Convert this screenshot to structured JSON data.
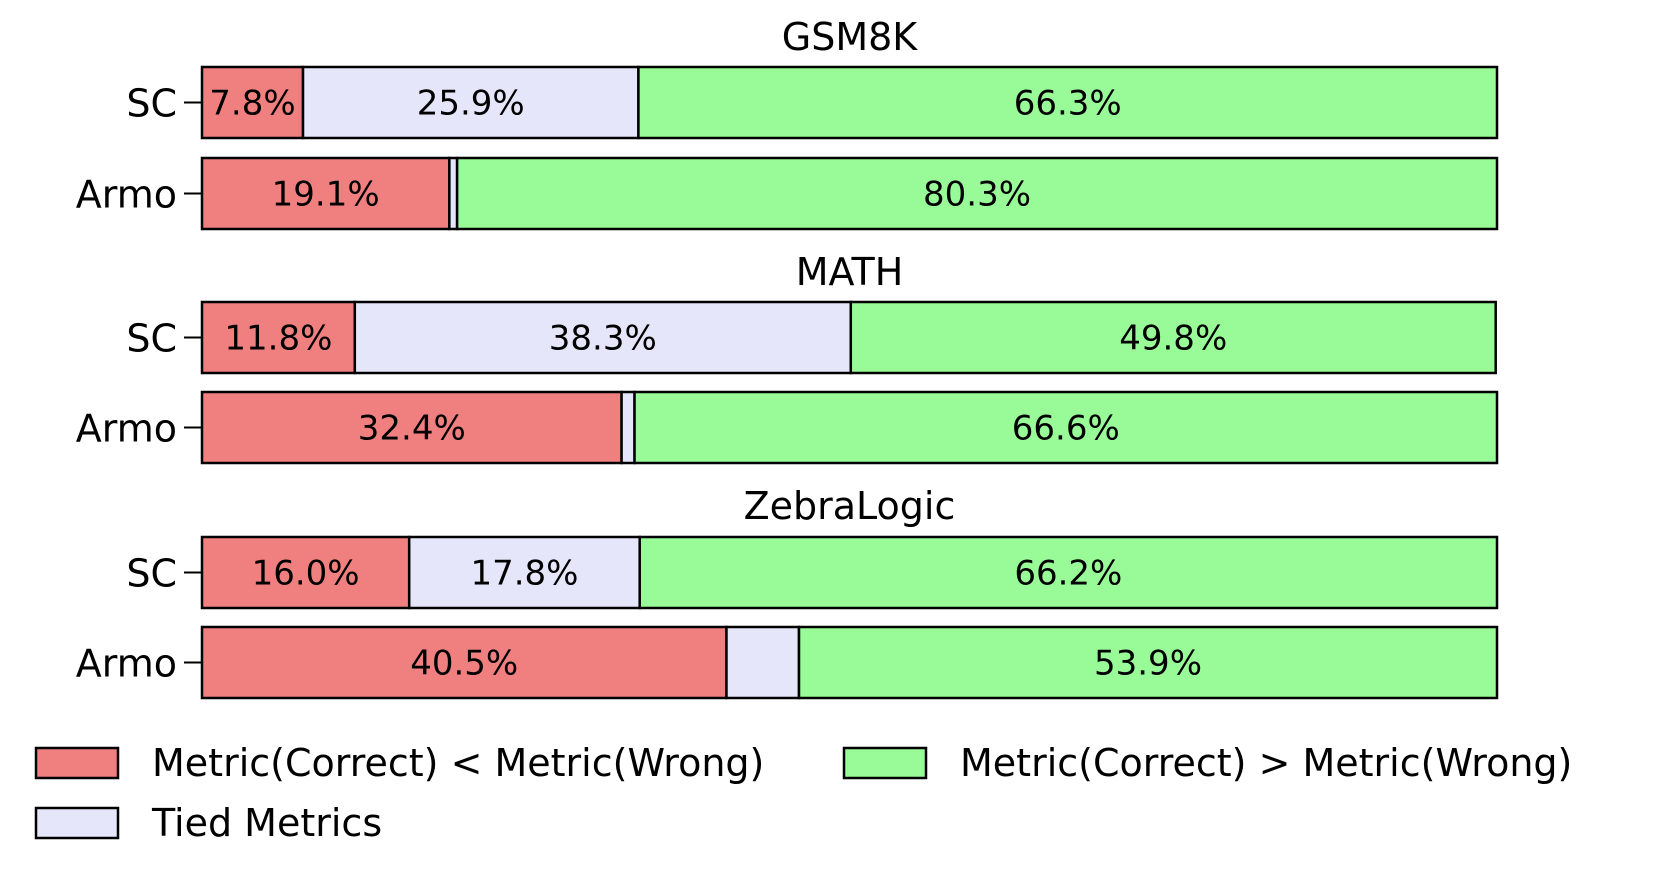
{
  "colors": {
    "lower": "#f08080",
    "tied": "#e6e6fa",
    "higher": "#98fb98",
    "edge": "#000000"
  },
  "chart_data": {
    "type": "bar",
    "orientation": "horizontal",
    "stacked": true,
    "xlim": [
      0,
      100
    ],
    "grid": false,
    "legend_position": "bottom",
    "legend": [
      {
        "key": "lower",
        "label": "Metric(Correct) < Metric(Wrong)"
      },
      {
        "key": "higher",
        "label": "Metric(Correct) > Metric(Wrong)"
      },
      {
        "key": "tied",
        "label": "Tied Metrics"
      }
    ],
    "panels": [
      {
        "title": "GSM8K",
        "rows": [
          {
            "label": "SC",
            "lower": 7.8,
            "tied": 25.9,
            "higher": 66.3,
            "lower_text": "7.8%",
            "tied_text": "25.9%",
            "higher_text": "66.3%"
          },
          {
            "label": "Armo",
            "lower": 19.1,
            "tied": 0.6,
            "higher": 80.3,
            "lower_text": "19.1%",
            "tied_text": "",
            "higher_text": "80.3%"
          }
        ]
      },
      {
        "title": "MATH",
        "rows": [
          {
            "label": "SC",
            "lower": 11.8,
            "tied": 38.3,
            "higher": 49.8,
            "lower_text": "11.8%",
            "tied_text": "38.3%",
            "higher_text": "49.8%"
          },
          {
            "label": "Armo",
            "lower": 32.4,
            "tied": 1.0,
            "higher": 66.6,
            "lower_text": "32.4%",
            "tied_text": "",
            "higher_text": "66.6%"
          }
        ]
      },
      {
        "title": "ZebraLogic",
        "rows": [
          {
            "label": "SC",
            "lower": 16.0,
            "tied": 17.8,
            "higher": 66.2,
            "lower_text": "16.0%",
            "tied_text": "17.8%",
            "higher_text": "66.2%"
          },
          {
            "label": "Armo",
            "lower": 40.5,
            "tied": 5.6,
            "higher": 53.9,
            "lower_text": "40.5%",
            "tied_text": "",
            "higher_text": "53.9%"
          }
        ]
      }
    ]
  }
}
